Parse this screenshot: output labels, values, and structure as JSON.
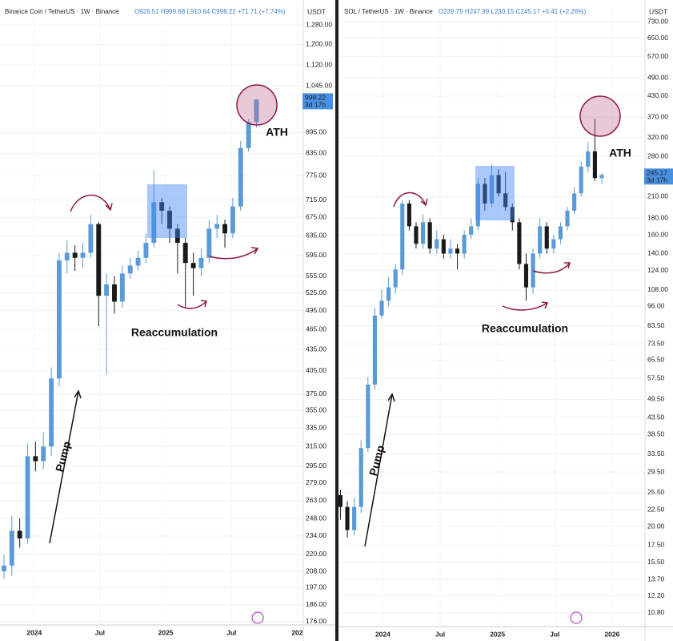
{
  "chart_data": [
    {
      "type": "candlestick",
      "title": "Binance Coin / TetherUS · 1W · Binance",
      "ohlc_text": "O926.51 H999.68 L910.64 C998.22 +71.71 (+7.74%)",
      "unit": "USDT",
      "log_scale": true,
      "grid": true,
      "up_color": "#5b9bd5",
      "down_color": "#1a1a1a",
      "x": [
        2023.77,
        2023.83,
        2023.89,
        2023.95,
        2024.01,
        2024.07,
        2024.13,
        2024.19,
        2024.25,
        2024.31,
        2024.37,
        2024.43,
        2024.49,
        2024.55,
        2024.61,
        2024.67,
        2024.73,
        2024.79,
        2024.85,
        2024.91,
        2024.97,
        2025.03,
        2025.09,
        2025.15,
        2025.21,
        2025.27,
        2025.33,
        2025.39,
        2025.45,
        2025.51,
        2025.57,
        2025.63,
        2025.69
      ],
      "open": [
        208,
        212,
        238,
        232,
        305,
        300,
        315,
        395,
        585,
        600,
        590,
        600,
        660,
        520,
        540,
        510,
        560,
        575,
        590,
        620,
        710,
        690,
        650,
        620,
        580,
        570,
        590,
        650,
        660,
        640,
        700,
        850,
        926.51
      ],
      "high": [
        220,
        250,
        248,
        318,
        320,
        330,
        410,
        600,
        625,
        615,
        620,
        680,
        665,
        560,
        555,
        575,
        590,
        605,
        640,
        790,
        720,
        700,
        660,
        630,
        600,
        610,
        670,
        680,
        670,
        720,
        870,
        935,
        999.68
      ],
      "low": [
        203,
        205,
        225,
        228,
        290,
        292,
        305,
        385,
        560,
        565,
        570,
        590,
        470,
        400,
        490,
        500,
        550,
        565,
        580,
        610,
        660,
        620,
        560,
        500,
        520,
        555,
        580,
        630,
        610,
        630,
        690,
        840,
        910.64
      ],
      "close": [
        212,
        238,
        232,
        305,
        300,
        315,
        395,
        585,
        600,
        590,
        600,
        660,
        520,
        540,
        510,
        560,
        575,
        590,
        620,
        710,
        690,
        650,
        620,
        580,
        570,
        590,
        650,
        660,
        640,
        700,
        850,
        926.51,
        998.22
      ],
      "xlim": [
        2023.74,
        2026.04
      ],
      "xticks": [
        2024,
        {
          "value": 2024.5,
          "label": "Jul"
        },
        2025,
        {
          "value": 2025.5,
          "label": "Jul"
        },
        {
          "value": 2026,
          "label": "202"
        }
      ],
      "ylim": [
        174,
        1354
      ],
      "yticks": [
        {
          "value": 1280,
          "label": "1,280.00"
        },
        {
          "value": 1200,
          "label": "1,200.00"
        },
        {
          "value": 1120,
          "label": "1,120.00"
        },
        {
          "value": 1045,
          "label": "1,045.00"
        },
        {
          "value": 895,
          "label": "895.00"
        },
        {
          "value": 835,
          "label": "835.00"
        },
        {
          "value": 775,
          "label": "775.00"
        },
        {
          "value": 715,
          "label": "715.00"
        },
        {
          "value": 675,
          "label": "675.00"
        },
        {
          "value": 635,
          "label": "635.00"
        },
        {
          "value": 595,
          "label": "595.00"
        },
        {
          "value": 555,
          "label": "555.00"
        },
        {
          "value": 525,
          "label": "525.00"
        },
        {
          "value": 495,
          "label": "495.00"
        },
        {
          "value": 465,
          "label": "465.00"
        },
        {
          "value": 435,
          "label": "435.00"
        },
        {
          "value": 405,
          "label": "405.00"
        },
        {
          "value": 375,
          "label": "375.00"
        },
        {
          "value": 355,
          "label": "355.00"
        },
        {
          "value": 335,
          "label": "335.00"
        },
        {
          "value": 315,
          "label": "315.00"
        },
        {
          "value": 295,
          "label": "295.00"
        },
        {
          "value": 279,
          "label": "279.00"
        },
        {
          "value": 263,
          "label": "263.00"
        },
        {
          "value": 248,
          "label": "248.00"
        },
        {
          "value": 234,
          "label": "234.00"
        },
        {
          "value": 220,
          "label": "220.00"
        },
        {
          "value": 208,
          "label": "208.00"
        },
        {
          "value": 197,
          "label": "197.00"
        },
        {
          "value": 186,
          "label": "186.00"
        },
        {
          "value": 176,
          "label": "176.00"
        }
      ],
      "price_tag": 998.22,
      "price_tag_note": "3d 17h",
      "annotations": [
        "ATH",
        "Reaccumulation",
        "Pump"
      ]
    },
    {
      "type": "candlestick",
      "title": "SOL / TetherUS · 1W · Binance",
      "ohlc_text": "O239.75 H247.99 L230.15 C245.17 +5.41 (+2.26%)",
      "unit": "USDT",
      "log_scale": true,
      "grid": true,
      "up_color": "#5b9bd5",
      "down_color": "#1a1a1a",
      "x": [
        2023.63,
        2023.69,
        2023.75,
        2023.81,
        2023.87,
        2023.93,
        2023.99,
        2024.05,
        2024.11,
        2024.17,
        2024.23,
        2024.29,
        2024.35,
        2024.41,
        2024.47,
        2024.53,
        2024.59,
        2024.65,
        2024.71,
        2024.77,
        2024.83,
        2024.89,
        2024.95,
        2025.01,
        2025.07,
        2025.13,
        2025.19,
        2025.25,
        2025.31,
        2025.37,
        2025.43,
        2025.49,
        2025.55,
        2025.61,
        2025.67,
        2025.73,
        2025.79,
        2025.85,
        2025.91
      ],
      "open": [
        25,
        23,
        19.5,
        23,
        35,
        55,
        90,
        100,
        110,
        125,
        200,
        170,
        150,
        175,
        145,
        155,
        140,
        145,
        140,
        160,
        170,
        230,
        200,
        245,
        215,
        195,
        175,
        130,
        110,
        140,
        170,
        145,
        155,
        170,
        190,
        215,
        260,
        290,
        239.75
      ],
      "high": [
        26,
        24,
        24.5,
        37,
        58,
        95,
        108,
        118,
        130,
        205,
        205,
        175,
        185,
        180,
        165,
        160,
        155,
        150,
        165,
        180,
        240,
        240,
        265,
        255,
        250,
        200,
        180,
        140,
        145,
        180,
        175,
        160,
        175,
        195,
        225,
        270,
        310,
        365,
        247.99
      ],
      "low": [
        21,
        18.5,
        18.8,
        22,
        34,
        53,
        88,
        96,
        105,
        120,
        165,
        145,
        145,
        140,
        140,
        135,
        135,
        125,
        135,
        155,
        165,
        190,
        195,
        210,
        190,
        165,
        125,
        100,
        105,
        135,
        140,
        140,
        150,
        165,
        185,
        210,
        250,
        235,
        230.15
      ],
      "close": [
        23,
        19.5,
        23,
        35,
        55,
        90,
        100,
        110,
        125,
        200,
        170,
        150,
        175,
        145,
        155,
        140,
        145,
        140,
        160,
        170,
        230,
        200,
        245,
        215,
        195,
        175,
        130,
        110,
        140,
        170,
        145,
        155,
        170,
        190,
        215,
        260,
        290,
        239.75,
        245.17
      ],
      "xlim": [
        2023.62,
        2026.28
      ],
      "xticks": [
        2024,
        {
          "value": 2024.5,
          "label": "Jul"
        },
        2025,
        {
          "value": 2025.5,
          "label": "Jul"
        },
        2026
      ],
      "ylim": [
        9.8,
        815
      ],
      "yticks": [
        {
          "value": 730,
          "label": "730.00"
        },
        {
          "value": 650,
          "label": "650.00"
        },
        {
          "value": 570,
          "label": "570.00"
        },
        {
          "value": 490,
          "label": "490.00"
        },
        {
          "value": 430,
          "label": "430.00"
        },
        {
          "value": 370,
          "label": "370.00"
        },
        {
          "value": 320,
          "label": "320.00"
        },
        {
          "value": 280,
          "label": "280.00"
        },
        {
          "value": 210,
          "label": "210.00"
        },
        {
          "value": 180,
          "label": "180.00"
        },
        {
          "value": 160,
          "label": "160.00"
        },
        {
          "value": 140,
          "label": "140.00"
        },
        {
          "value": 124,
          "label": "124.00"
        },
        {
          "value": 108,
          "label": "108.00"
        },
        {
          "value": 96,
          "label": "96.00"
        },
        {
          "value": 83.5,
          "label": "83.50"
        },
        {
          "value": 73.5,
          "label": "73.50"
        },
        {
          "value": 65.5,
          "label": "65.50"
        },
        {
          "value": 57.5,
          "label": "57.50"
        },
        {
          "value": 49.5,
          "label": "49.50"
        },
        {
          "value": 43.5,
          "label": "43.50"
        },
        {
          "value": 38.5,
          "label": "38.50"
        },
        {
          "value": 33.5,
          "label": "33.50"
        },
        {
          "value": 29.5,
          "label": "29.50"
        },
        {
          "value": 25.5,
          "label": "25.50"
        },
        {
          "value": 22.5,
          "label": "22.50"
        },
        {
          "value": 20,
          "label": "20.00"
        },
        {
          "value": 17.5,
          "label": "17.50"
        },
        {
          "value": 15.5,
          "label": "15.50"
        },
        {
          "value": 13.7,
          "label": "13.70"
        },
        {
          "value": 12.2,
          "label": "12.20"
        },
        {
          "value": 10.8,
          "label": "10.80"
        }
      ],
      "price_tag": 245.17,
      "price_tag_note": "3d 17h",
      "annotations": [
        "ATH",
        "Reaccumulation",
        "Pump"
      ]
    }
  ]
}
